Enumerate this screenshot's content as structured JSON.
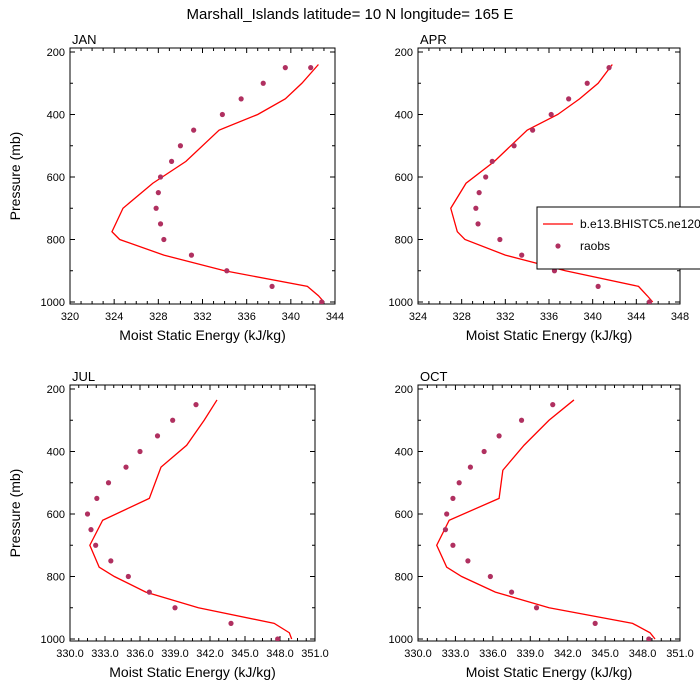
{
  "figure_title": "Marshall_Islands  latitude= 10 N longitude= 165 E",
  "legend": {
    "model_label": "b.e13.BHISTC5.ne120",
    "obs_label": "raobs"
  },
  "colors": {
    "model": "#ff0000",
    "obs": "#b03060",
    "axes": "#000000"
  },
  "chart_data": [
    {
      "type": "line",
      "panel": "JAN",
      "title": "JAN",
      "xlabel": "Moist Static Energy (kJ/kg)",
      "ylabel": "Pressure (mb)",
      "xlim": [
        320,
        344
      ],
      "ylim": [
        1000,
        200
      ],
      "xticks": [
        "320",
        "324",
        "328",
        "332",
        "336",
        "340",
        "344"
      ],
      "xtick_values": [
        320,
        324,
        328,
        332,
        336,
        340,
        344
      ],
      "yticks": [
        "200",
        "400",
        "600",
        "800",
        "1000"
      ],
      "ytick_values": [
        200,
        400,
        600,
        800,
        1000
      ],
      "series": [
        {
          "name": "b.e13.BHISTC5.ne120",
          "kind": "line",
          "x": [
            343.0,
            342.5,
            341.5,
            334.0,
            328.5,
            324.5,
            323.8,
            324.8,
            327.5,
            330.5,
            333.5,
            337.0,
            339.5,
            341.0,
            342.5
          ],
          "y": [
            1000,
            980,
            950,
            900,
            850,
            800,
            775,
            700,
            620,
            550,
            450,
            400,
            350,
            300,
            240
          ]
        },
        {
          "name": "raobs",
          "kind": "scatter",
          "x": [
            342.8,
            338.3,
            334.2,
            331.0,
            328.5,
            328.2,
            327.8,
            328.0,
            328.2,
            329.2,
            330.0,
            331.2,
            333.8,
            335.5,
            337.5,
            339.5,
            341.8
          ],
          "y": [
            1000,
            950,
            900,
            850,
            800,
            750,
            700,
            650,
            600,
            550,
            500,
            450,
            400,
            350,
            300,
            250,
            250
          ]
        }
      ]
    },
    {
      "type": "line",
      "panel": "APR",
      "title": "APR",
      "xlabel": "Moist Static Energy (kJ/kg)",
      "ylabel": "",
      "xlim": [
        324,
        348
      ],
      "ylim": [
        1000,
        200
      ],
      "xticks": [
        "324",
        "328",
        "332",
        "336",
        "340",
        "344",
        "348"
      ],
      "xtick_values": [
        324,
        328,
        332,
        336,
        340,
        344,
        348
      ],
      "yticks": [
        "200",
        "400",
        "600",
        "800",
        "1000"
      ],
      "ytick_values": [
        200,
        400,
        600,
        800,
        1000
      ],
      "series": [
        {
          "name": "b.e13.BHISTC5.ne120",
          "kind": "line",
          "x": [
            345.5,
            345.0,
            344.2,
            337.5,
            332.0,
            328.3,
            327.6,
            327.0,
            328.4,
            331.0,
            334.0,
            336.8,
            338.8,
            340.5,
            341.8
          ],
          "y": [
            1000,
            980,
            950,
            900,
            850,
            800,
            775,
            700,
            620,
            550,
            450,
            400,
            350,
            300,
            240
          ]
        },
        {
          "name": "raobs",
          "kind": "scatter",
          "x": [
            345.2,
            340.5,
            336.5,
            333.5,
            331.5,
            329.5,
            329.3,
            329.6,
            330.2,
            330.8,
            332.8,
            334.5,
            336.2,
            337.8,
            339.5,
            341.5
          ],
          "y": [
            1000,
            950,
            900,
            850,
            800,
            750,
            700,
            650,
            600,
            550,
            500,
            450,
            400,
            350,
            300,
            250
          ]
        }
      ]
    },
    {
      "type": "line",
      "panel": "JUL",
      "title": "JUL",
      "xlabel": "Moist Static Energy (kJ/kg)",
      "ylabel": "Pressure (mb)",
      "xlim": [
        330,
        351
      ],
      "ylim": [
        1000,
        200
      ],
      "xticks": [
        "330.0",
        "333.0",
        "336.0",
        "339.0",
        "342.0",
        "345.0",
        "348.0",
        "351.0"
      ],
      "xtick_values": [
        330,
        333,
        336,
        339,
        342,
        345,
        348,
        351
      ],
      "yticks": [
        "200",
        "400",
        "600",
        "800",
        "1000"
      ],
      "ytick_values": [
        200,
        400,
        600,
        800,
        1000
      ],
      "series": [
        {
          "name": "b.e13.BHISTC5.ne120",
          "kind": "line",
          "x": [
            349.0,
            348.8,
            347.5,
            341.0,
            336.5,
            333.8,
            332.5,
            331.7,
            332.8,
            336.8,
            337.8,
            340.0,
            341.5,
            342.6
          ],
          "y": [
            1000,
            980,
            950,
            900,
            850,
            800,
            770,
            700,
            620,
            550,
            450,
            380,
            300,
            235
          ]
        },
        {
          "name": "raobs",
          "kind": "scatter",
          "x": [
            347.8,
            343.8,
            339.0,
            336.8,
            335.0,
            333.5,
            332.2,
            331.8,
            331.5,
            332.3,
            333.3,
            334.8,
            336.0,
            337.5,
            338.8,
            340.8
          ],
          "y": [
            1000,
            950,
            900,
            850,
            800,
            750,
            700,
            650,
            600,
            550,
            500,
            450,
            400,
            350,
            300,
            250
          ]
        }
      ]
    },
    {
      "type": "line",
      "panel": "OCT",
      "title": "OCT",
      "xlabel": "Moist Static Energy (kJ/kg)",
      "ylabel": "",
      "xlim": [
        330,
        351
      ],
      "ylim": [
        1000,
        200
      ],
      "xticks": [
        "330.0",
        "333.0",
        "336.0",
        "339.0",
        "342.0",
        "345.0",
        "348.0",
        "351.0"
      ],
      "xtick_values": [
        330,
        333,
        336,
        339,
        342,
        345,
        348,
        351
      ],
      "yticks": [
        "200",
        "400",
        "600",
        "800",
        "1000"
      ],
      "ytick_values": [
        200,
        400,
        600,
        800,
        1000
      ],
      "series": [
        {
          "name": "b.e13.BHISTC5.ne120",
          "kind": "line",
          "x": [
            349.0,
            348.6,
            347.2,
            340.5,
            336.2,
            333.5,
            332.3,
            331.5,
            332.5,
            336.5,
            336.8,
            338.5,
            340.5,
            342.5
          ],
          "y": [
            1000,
            980,
            950,
            900,
            850,
            800,
            770,
            700,
            620,
            550,
            460,
            380,
            300,
            235
          ]
        },
        {
          "name": "raobs",
          "kind": "scatter",
          "x": [
            348.5,
            344.2,
            339.5,
            337.5,
            335.8,
            334.0,
            332.8,
            332.2,
            332.3,
            332.8,
            333.3,
            334.2,
            335.3,
            336.5,
            338.3,
            340.8
          ],
          "y": [
            1000,
            950,
            900,
            850,
            800,
            750,
            700,
            650,
            600,
            550,
            500,
            450,
            400,
            350,
            300,
            250
          ]
        }
      ]
    }
  ]
}
